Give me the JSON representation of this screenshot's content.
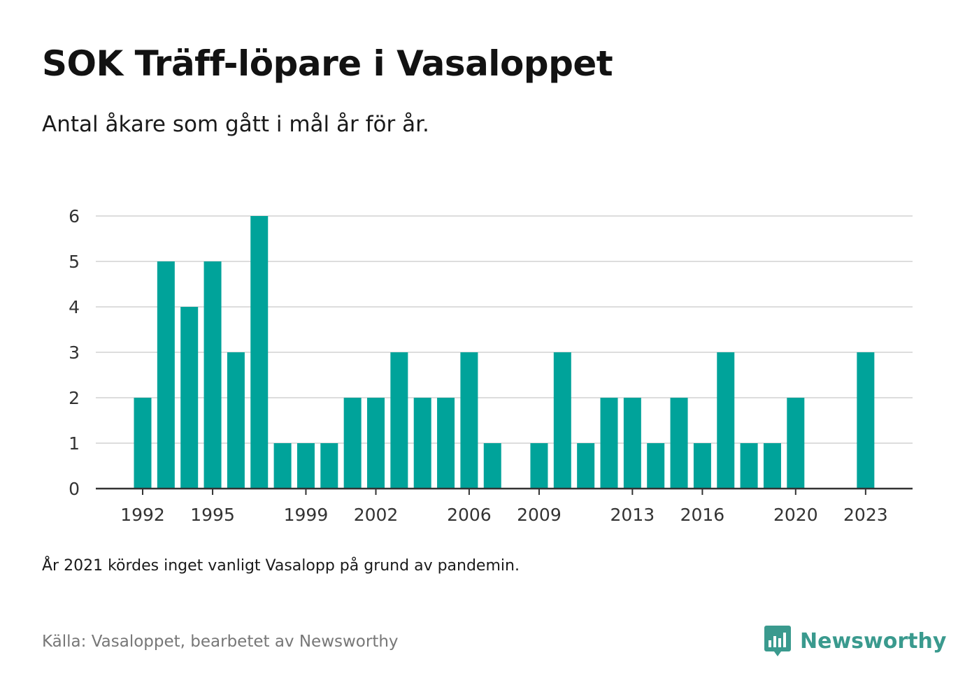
{
  "title": "SOK Träff-löpare i Vasaloppet",
  "subtitle": "Antal åkare som gått i mål år för år.",
  "note": "År 2021 kördes inget vanligt Vasalopp på grund av pandemin.",
  "source": "Källa: Vasaloppet, bearbetet av Newsworthy",
  "brand": {
    "name": "Newsworthy",
    "color": "#3a9a8e"
  },
  "chart_data": {
    "type": "bar",
    "color": "#00a39a",
    "categories": [
      1992,
      1993,
      1994,
      1995,
      1996,
      1997,
      1998,
      1999,
      2000,
      2001,
      2002,
      2003,
      2004,
      2005,
      2006,
      2007,
      2008,
      2009,
      2010,
      2011,
      2012,
      2013,
      2014,
      2015,
      2016,
      2017,
      2018,
      2019,
      2020,
      2021,
      2022,
      2023
    ],
    "values": [
      2,
      5,
      4,
      5,
      3,
      6,
      1,
      1,
      1,
      2,
      2,
      3,
      2,
      2,
      3,
      1,
      0,
      1,
      3,
      1,
      2,
      2,
      1,
      2,
      1,
      3,
      1,
      1,
      2,
      0,
      0,
      3
    ],
    "xticks": [
      "1992",
      "1995",
      "1999",
      "2002",
      "2006",
      "2009",
      "2013",
      "2016",
      "2020",
      "2023"
    ],
    "yticks": [
      0,
      1,
      2,
      3,
      4,
      5,
      6
    ],
    "ylim": [
      0,
      6
    ],
    "grid": true,
    "xlabel": "",
    "ylabel": ""
  }
}
